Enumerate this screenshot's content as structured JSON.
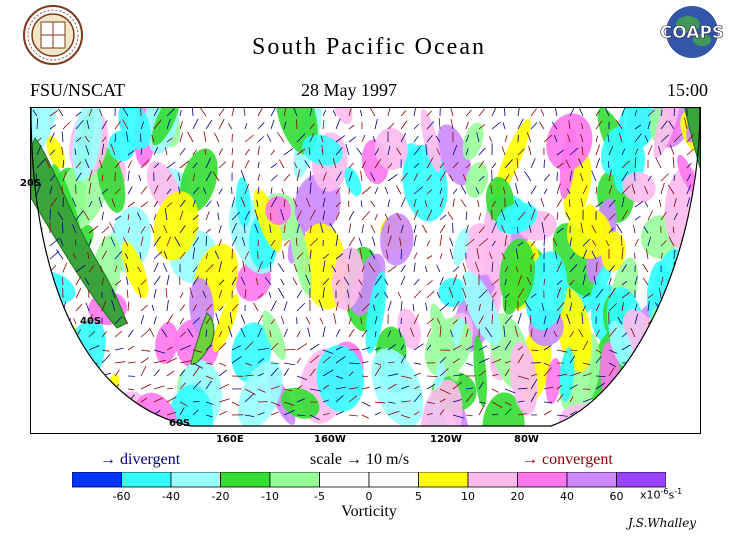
{
  "header": {
    "title": "South Pacific Ocean",
    "source": "FSU/NSCAT",
    "date": "28 May 1997",
    "time": "15:00"
  },
  "logos": {
    "left_seal": "FSU seal",
    "right_logo_text": "COAPS"
  },
  "map": {
    "latitude_labels": [
      "20S",
      "40S",
      "60S"
    ],
    "longitude_labels": [
      "160E",
      "160W",
      "120W",
      "80W"
    ],
    "land_color": "#3aa33a",
    "arrow_colors": {
      "divergent": "#000080",
      "convergent": "#8b0000"
    }
  },
  "legend": {
    "divergent_label": "divergent",
    "scale_label": "scale",
    "scale_value": "10 m/s",
    "convergent_label": "convergent",
    "arrow_symbol": "→"
  },
  "colorbar": {
    "colors": [
      "#0033ff",
      "#33ffff",
      "#99ffff",
      "#33dd33",
      "#99ff99",
      "#ffffff",
      "#ffffff",
      "#ffff00",
      "#ffbbee",
      "#ff77ee",
      "#cc88ff",
      "#9944ff"
    ],
    "tick_labels": [
      "-60",
      "-40",
      "-20",
      "-10",
      "-5",
      "0",
      "5",
      "10",
      "20",
      "40",
      "60"
    ],
    "units_base": "x10",
    "units_exp": "-6",
    "units_suffix": "s",
    "units_suffix_exp": "-1",
    "title": "Vorticity"
  },
  "signature": "J.S.Whalley"
}
